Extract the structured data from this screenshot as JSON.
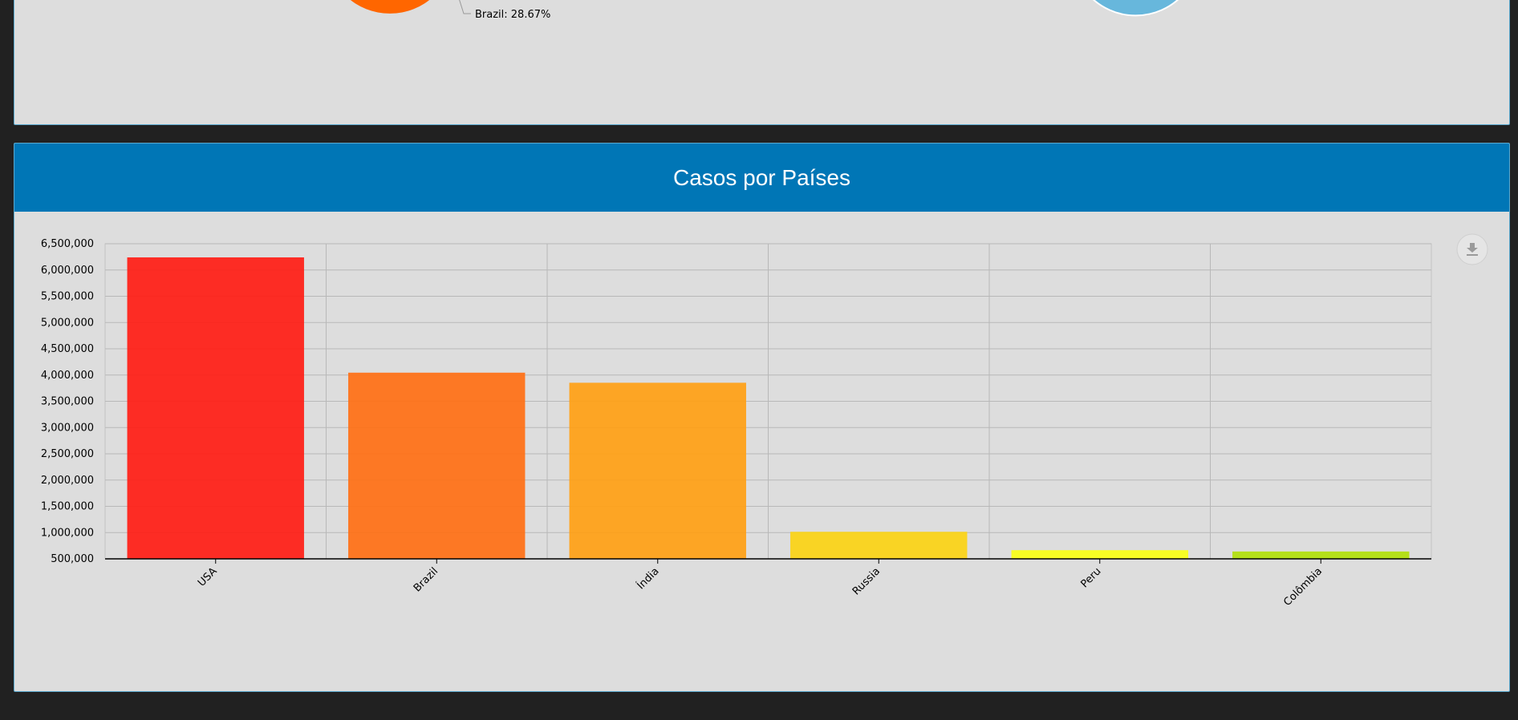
{
  "top_panel": {
    "pie_label": "Brazil: 28.67%",
    "colors": {
      "left_pie": "#ff6600",
      "right_pie": "#67b7dc"
    }
  },
  "bottom_panel": {
    "title": "Casos por Países",
    "download_icon": "download-icon"
  },
  "chart_data": {
    "type": "bar",
    "title": "Casos por Países",
    "xlabel": "",
    "ylabel": "",
    "categories": [
      "USA",
      "Brazil",
      "Índia",
      "Russia",
      "Peru",
      "Colômbia"
    ],
    "values": [
      6240000,
      4045000,
      3853000,
      1015000,
      665000,
      640000
    ],
    "colors": [
      "#ff1c14",
      "#ff6f14",
      "#ffa014",
      "#fbd314",
      "#f8ff14",
      "#b0de09"
    ],
    "ylim": [
      500000,
      6500000
    ],
    "yticks": [
      500000,
      1000000,
      1500000,
      2000000,
      2500000,
      3000000,
      3500000,
      4000000,
      4500000,
      5000000,
      5500000,
      6000000,
      6500000
    ],
    "ytick_labels": [
      "500,000",
      "1,000,000",
      "1,500,000",
      "2,000,000",
      "2,500,000",
      "3,000,000",
      "3,500,000",
      "4,000,000",
      "4,500,000",
      "5,000,000",
      "5,500,000",
      "6,000,000",
      "6,500,000"
    ],
    "grid": true,
    "legend": "none"
  }
}
